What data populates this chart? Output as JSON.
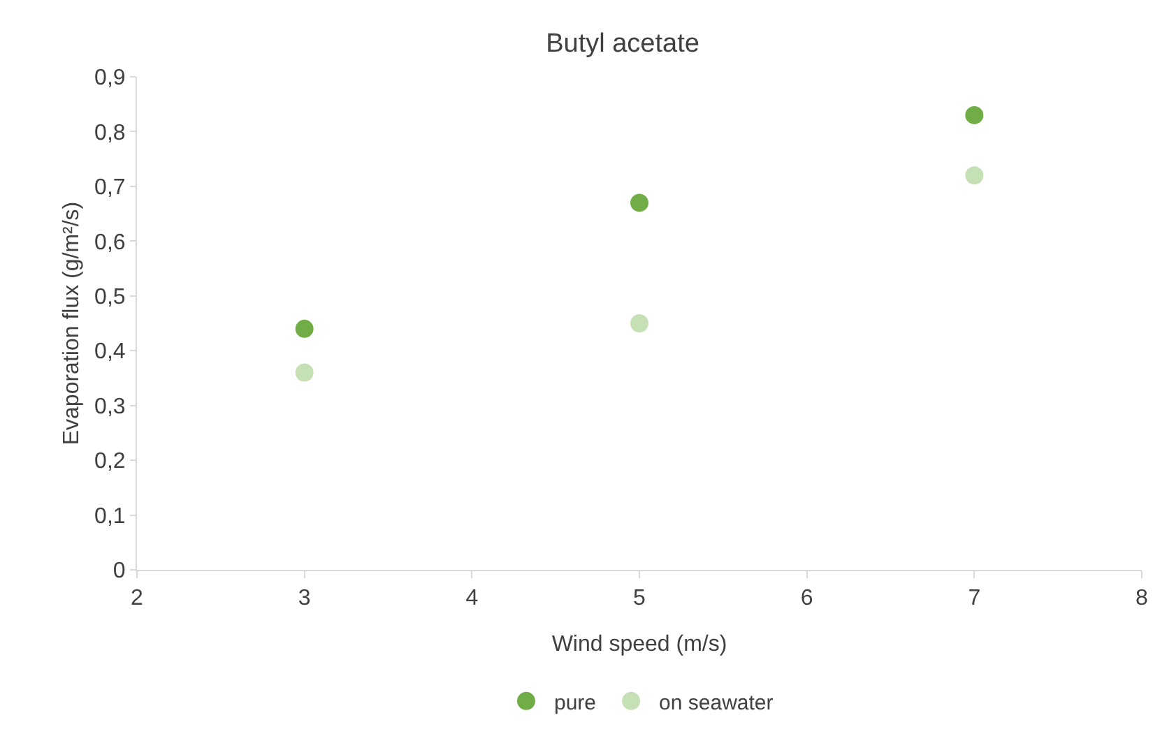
{
  "chart_data": {
    "type": "scatter",
    "title": "Butyl acetate",
    "xlabel": "Wind speed (m/s)",
    "ylabel": "Evaporation flux (g/m²/s)",
    "x": [
      3,
      5,
      7
    ],
    "series": [
      {
        "name": "pure",
        "color": "#70ad47",
        "values": [
          0.44,
          0.67,
          0.83
        ]
      },
      {
        "name": "on seawater",
        "color": "#c5e0b4",
        "values": [
          0.36,
          0.45,
          0.72
        ]
      }
    ],
    "xlim": [
      2,
      8
    ],
    "xticks": [
      2,
      3,
      4,
      5,
      6,
      7,
      8
    ],
    "ylim": [
      0,
      0.9
    ],
    "yticks": [
      0,
      {
        "value": 0.1,
        "label": "0,1"
      },
      {
        "value": 0.2,
        "label": "0,2"
      },
      {
        "value": 0.3,
        "label": "0,3"
      },
      {
        "value": 0.4,
        "label": "0,4"
      },
      {
        "value": 0.5,
        "label": "0,5"
      },
      {
        "value": 0.6,
        "label": "0,6"
      },
      {
        "value": 0.7,
        "label": "0,7"
      },
      {
        "value": 0.8,
        "label": "0,8"
      },
      {
        "value": 0.9,
        "label": "0,9"
      }
    ],
    "grid": false,
    "legend": "bottom",
    "marker": "circle"
  }
}
